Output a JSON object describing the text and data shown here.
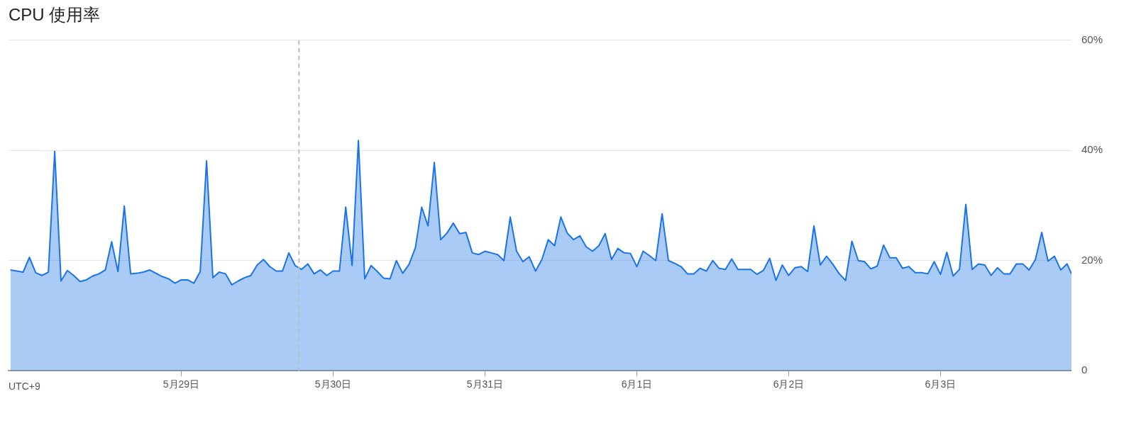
{
  "chart_data": {
    "type": "area",
    "title": "CPU 使用率",
    "annotations": [
      "UTC+9"
    ],
    "x": [
      "--05-27T21:00",
      "--05-27T22:00",
      "--05-27T23:00",
      "--05-28T00:00",
      "--05-28T01:00",
      "--05-28T02:00",
      "--05-28T03:00",
      "--05-28T04:00",
      "--05-28T05:00",
      "--05-28T06:00",
      "--05-28T07:00",
      "--05-28T08:00",
      "--05-28T09:00",
      "--05-28T10:00",
      "--05-28T11:00",
      "--05-28T12:00",
      "--05-28T13:00",
      "--05-28T14:00",
      "--05-28T15:00",
      "--05-28T16:00",
      "--05-28T17:00",
      "--05-28T18:00",
      "--05-28T19:00",
      "--05-28T20:00",
      "--05-28T21:00",
      "--05-28T22:00",
      "--05-28T23:00",
      "--05-29T00:00",
      "--05-29T01:00",
      "--05-29T02:00",
      "--05-29T03:00",
      "--05-29T04:00",
      "--05-29T05:00",
      "--05-29T06:00",
      "--05-29T07:00",
      "--05-29T08:00",
      "--05-29T09:00",
      "--05-29T10:00",
      "--05-29T11:00",
      "--05-29T12:00",
      "--05-29T13:00",
      "--05-29T14:00",
      "--05-29T15:00",
      "--05-29T16:00",
      "--05-29T17:00",
      "--05-29T18:00",
      "--05-29T19:00",
      "--05-29T20:00",
      "--05-29T21:00",
      "--05-29T22:00",
      "--05-29T23:00",
      "--05-30T00:00",
      "--05-30T01:00",
      "--05-30T02:00",
      "--05-30T03:00",
      "--05-30T04:00",
      "--05-30T05:00",
      "--05-30T06:00",
      "--05-30T07:00",
      "--05-30T08:00",
      "--05-30T09:00",
      "--05-30T10:00",
      "--05-30T11:00",
      "--05-30T12:00",
      "--05-30T13:00",
      "--05-30T14:00",
      "--05-30T15:00",
      "--05-30T16:00",
      "--05-30T17:00",
      "--05-30T18:00",
      "--05-30T19:00",
      "--05-30T20:00",
      "--05-30T21:00",
      "--05-30T22:00",
      "--05-30T23:00",
      "--05-31T00:00",
      "--05-31T01:00",
      "--05-31T02:00",
      "--05-31T03:00",
      "--05-31T04:00",
      "--05-31T05:00",
      "--05-31T06:00",
      "--05-31T07:00",
      "--05-31T08:00",
      "--05-31T09:00",
      "--05-31T10:00",
      "--05-31T11:00",
      "--05-31T12:00",
      "--05-31T13:00",
      "--05-31T14:00",
      "--05-31T15:00",
      "--05-31T16:00",
      "--05-31T17:00",
      "--05-31T18:00",
      "--05-31T19:00",
      "--05-31T20:00",
      "--05-31T21:00",
      "--05-31T22:00",
      "--05-31T23:00",
      "--06-01T00:00",
      "--06-01T01:00",
      "--06-01T02:00",
      "--06-01T03:00",
      "--06-01T04:00",
      "--06-01T05:00",
      "--06-01T06:00",
      "--06-01T07:00",
      "--06-01T08:00",
      "--06-01T09:00",
      "--06-01T10:00",
      "--06-01T11:00",
      "--06-01T12:00",
      "--06-01T13:00",
      "--06-01T14:00",
      "--06-01T15:00",
      "--06-01T16:00",
      "--06-01T17:00",
      "--06-01T18:00",
      "--06-01T19:00",
      "--06-01T20:00",
      "--06-01T21:00",
      "--06-01T22:00",
      "--06-01T23:00",
      "--06-02T00:00",
      "--06-02T01:00",
      "--06-02T02:00",
      "--06-02T03:00",
      "--06-02T04:00",
      "--06-02T05:00",
      "--06-02T06:00",
      "--06-02T07:00",
      "--06-02T08:00",
      "--06-02T09:00",
      "--06-02T10:00",
      "--06-02T11:00",
      "--06-02T12:00",
      "--06-02T13:00",
      "--06-02T14:00",
      "--06-02T15:00",
      "--06-02T16:00",
      "--06-02T17:00",
      "--06-02T18:00",
      "--06-02T19:00",
      "--06-02T20:00",
      "--06-02T21:00",
      "--06-02T22:00",
      "--06-02T23:00",
      "--06-03T00:00",
      "--06-03T01:00",
      "--06-03T02:00",
      "--06-03T03:00",
      "--06-03T04:00",
      "--06-03T05:00",
      "--06-03T06:00",
      "--06-03T07:00",
      "--06-03T08:00",
      "--06-03T09:00",
      "--06-03T10:00",
      "--06-03T11:00",
      "--06-03T12:00",
      "--06-03T13:00",
      "--06-03T14:00",
      "--06-03T15:00",
      "--06-03T16:00",
      "--06-03T17:00",
      "--06-03T18:00",
      "--06-03T19:00",
      "--06-03T20:00",
      "--06-03T20:42"
    ],
    "series": [
      {
        "color": "#1a73e8",
        "values": [
          18.3,
          18.1,
          17.9,
          20.6,
          17.8,
          17.3,
          17.9,
          39.8,
          16.3,
          18.2,
          17.3,
          16.2,
          16.5,
          17.2,
          17.6,
          18.3,
          23.4,
          18.0,
          29.9,
          17.6,
          17.7,
          17.9,
          18.3,
          17.7,
          17.1,
          16.7,
          15.9,
          16.5,
          16.5,
          15.9,
          18.0,
          38.1,
          16.9,
          17.9,
          17.6,
          15.6,
          16.3,
          16.9,
          17.3,
          19.2,
          20.2,
          18.9,
          18.1,
          18.1,
          21.4,
          19.1,
          18.4,
          19.4,
          17.6,
          18.3,
          17.3,
          18.1,
          18.1,
          29.7,
          19.1,
          41.8,
          16.7,
          19.1,
          18.0,
          16.8,
          16.7,
          20.0,
          17.7,
          19.3,
          22.3,
          29.7,
          26.3,
          37.8,
          23.8,
          25.0,
          26.8,
          24.9,
          25.1,
          21.4,
          21.1,
          21.7,
          21.4,
          21.1,
          20.0,
          27.9,
          21.7,
          19.8,
          20.7,
          18.1,
          20.2,
          23.8,
          22.7,
          27.9,
          25.0,
          23.8,
          24.5,
          22.5,
          21.7,
          22.7,
          24.9,
          20.2,
          22.2,
          21.4,
          21.3,
          18.9,
          21.7,
          20.9,
          20.0,
          28.5,
          20.0,
          19.5,
          18.9,
          17.6,
          17.6,
          18.6,
          18.1,
          20.0,
          18.6,
          18.4,
          20.3,
          18.4,
          18.4,
          18.4,
          17.5,
          18.2,
          20.4,
          16.4,
          19.2,
          17.3,
          18.7,
          18.9,
          18.0,
          26.3,
          19.2,
          20.8,
          19.3,
          17.6,
          16.4,
          23.5,
          20.0,
          19.8,
          18.5,
          19.0,
          22.8,
          20.5,
          20.5,
          18.6,
          18.9,
          17.8,
          17.8,
          17.6,
          19.8,
          17.5,
          21.5,
          17.2,
          18.4,
          30.2,
          18.4,
          19.4,
          19.2,
          17.3,
          18.7,
          17.6,
          17.6,
          19.4,
          19.4,
          18.3,
          20.2,
          25.1,
          19.9,
          20.8,
          18.3,
          19.4,
          17.6
        ]
      }
    ],
    "xlim": [
      "--05-27T20:42",
      "--06-03T20:42"
    ],
    "xticks": [
      {
        "value": "--05-29",
        "label": "5月29日"
      },
      {
        "value": "--05-30",
        "label": "5月30日"
      },
      {
        "value": "--05-31",
        "label": "5月31日"
      },
      {
        "value": "--06-01",
        "label": "6月1日"
      },
      {
        "value": "--06-02",
        "label": "6月2日"
      },
      {
        "value": "--06-03",
        "label": "6月3日"
      }
    ],
    "ylim": [
      0,
      60
    ],
    "yticks": [
      0,
      {
        "value": 20,
        "label": "20%"
      },
      {
        "value": 40,
        "label": "40%"
      },
      {
        "value": 60,
        "label": "60%"
      }
    ],
    "grid": "y",
    "legend": false,
    "ref_lines": [
      {
        "axis": "x",
        "value": "--05-29T18:36",
        "color": "#bdbdbd",
        "line_style": "dashed"
      }
    ]
  }
}
